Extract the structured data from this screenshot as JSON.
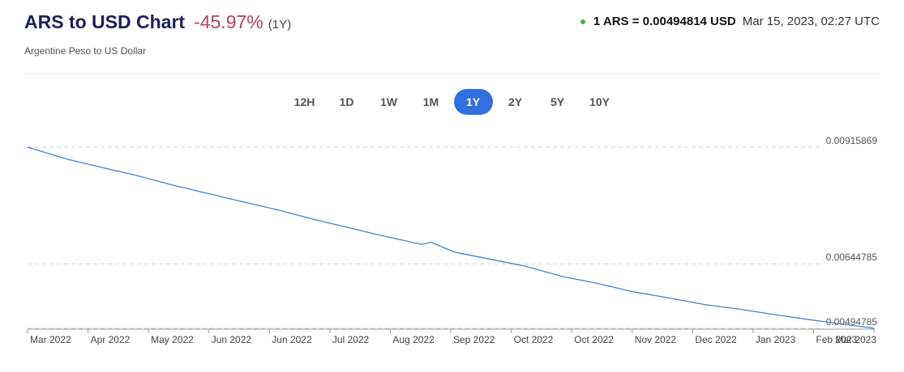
{
  "header": {
    "title": "ARS to USD Chart",
    "change": "-45.97%",
    "period": "(1Y)",
    "subtitle": "Argentine Peso to US Dollar",
    "rate": "1 ARS = 0.00494814 USD",
    "timestamp": "Mar 15, 2023, 02:27 UTC",
    "status_color": "#3db34a"
  },
  "ranges": {
    "options": [
      "12H",
      "1D",
      "1W",
      "1M",
      "1Y",
      "2Y",
      "5Y",
      "10Y"
    ],
    "active": "1Y"
  },
  "colors": {
    "line": "#4a82c4",
    "accent": "#2f6fdf",
    "title": "#1c1f5c",
    "change": "#b6425f"
  },
  "chart_data": {
    "type": "line",
    "xlim": [
      "2022-03-15",
      "2023-03-15"
    ],
    "ylim": [
      0.00494785,
      0.00915869
    ],
    "y_ticks": [
      "0.00915869",
      "0.00644785",
      "0.00494785"
    ],
    "y_tick_values": [
      0.00915869,
      0.00644785,
      0.00494785
    ],
    "x_tick_labels": [
      "Mar 2022",
      "Apr 2022",
      "May 2022",
      "Jun 2022",
      "Jun 2022",
      "Jul 2022",
      "Aug 2022",
      "Sep 2022",
      "Oct 2022",
      "Oct 2022",
      "Nov 2022",
      "Dec 2022",
      "Jan 2023",
      "Feb 2023",
      "Mar 2023"
    ],
    "grid": "dashed horizontal",
    "series": [
      {
        "x": [
          "2022-03-15",
          "2022-04-01",
          "2022-04-15",
          "2022-05-01",
          "2022-05-15",
          "2022-06-01",
          "2022-06-15",
          "2022-07-01",
          "2022-07-15",
          "2022-08-01",
          "2022-08-15",
          "2022-09-01",
          "2022-09-05",
          "2022-09-15",
          "2022-10-01",
          "2022-10-15",
          "2022-11-01",
          "2022-11-15",
          "2022-12-01",
          "2022-12-15",
          "2023-01-01",
          "2023-01-15",
          "2023-02-01",
          "2023-02-15",
          "2023-03-01",
          "2023-03-15"
        ],
        "y": [
          0.00915869,
          0.00888,
          0.0087,
          0.0085,
          0.0083,
          0.00808,
          0.0079,
          0.0077,
          0.0075,
          0.00728,
          0.0071,
          0.0069,
          0.00695,
          0.00672,
          0.00655,
          0.0064,
          0.00615,
          0.006,
          0.0058,
          0.00567,
          0.0055,
          0.0054,
          0.00526,
          0.00515,
          0.00505,
          0.00494814
        ]
      }
    ]
  }
}
